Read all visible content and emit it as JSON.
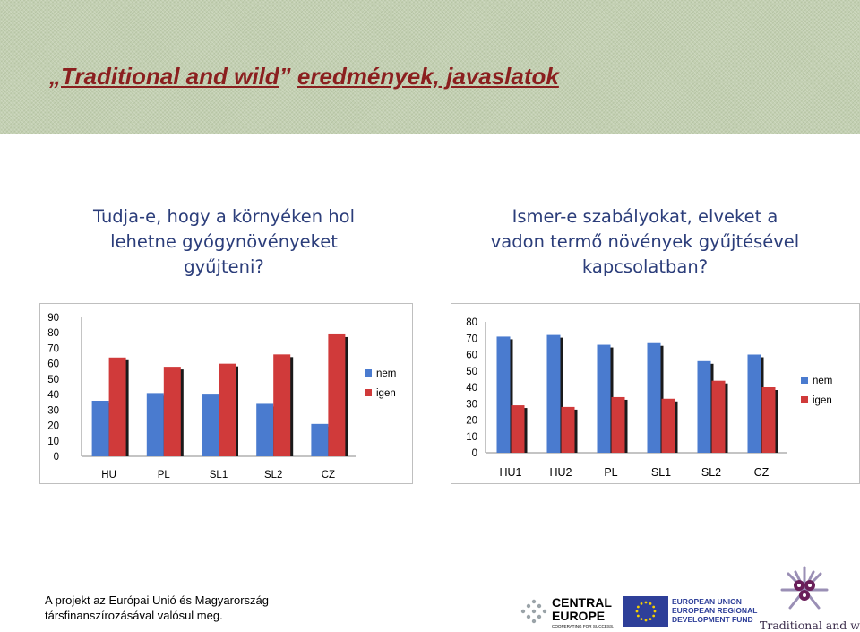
{
  "header": {
    "title_open": "„",
    "title_name": "Traditional and wild",
    "title_gap": "”",
    "title_rest": "eredmények, javaslatok"
  },
  "questions": {
    "q1": "Tudja-e, hogy a környéken hol lehetne gyógynövényeket gyűjteni?",
    "q2": "Ismer-e szabályokat, elveket a vadon termő növények gyűjtésével kapcsolatban?"
  },
  "colors": {
    "nem": "#4a7bcf",
    "igen": "#d03a3a",
    "shadow": "#1a1a1a"
  },
  "chart_data": [
    {
      "type": "bar",
      "categories": [
        "HU",
        "PL",
        "SL1",
        "SL2",
        "CZ"
      ],
      "series": [
        {
          "name": "nem",
          "values": [
            36,
            41,
            40,
            34,
            21
          ]
        },
        {
          "name": "igen",
          "values": [
            64,
            58,
            60,
            66,
            79
          ]
        }
      ],
      "ylim": [
        0,
        90
      ],
      "yticks": [
        "0",
        "10",
        "20",
        "30",
        "40",
        "50",
        "60",
        "70",
        "80",
        "90"
      ],
      "legend": "right"
    },
    {
      "type": "bar",
      "categories": [
        "HU1",
        "HU2",
        "PL",
        "SL1",
        "SL2",
        "CZ"
      ],
      "series": [
        {
          "name": "nem",
          "values": [
            71,
            72,
            66,
            67,
            56,
            60
          ]
        },
        {
          "name": "igen",
          "values": [
            29,
            28,
            34,
            33,
            44,
            40
          ]
        }
      ],
      "ylim": [
        0,
        80
      ],
      "yticks": [
        "0",
        "10",
        "20",
        "30",
        "40",
        "50",
        "60",
        "70",
        "80"
      ],
      "legend": "right"
    }
  ],
  "footer": {
    "line1": "A projekt az Európai Unió és Magyarország",
    "line2": "társfinanszírozásával valósul meg.",
    "ce_line1": "CENTRAL",
    "ce_line2": "EUROPE",
    "ce_line3": "COOPERATING FOR SUCCESS.",
    "erdf_line1": "EUROPEAN UNION",
    "erdf_line2": "EUROPEAN REGIONAL",
    "erdf_line3": "DEVELOPMENT FUND",
    "tw_label": "Traditional and wild"
  }
}
